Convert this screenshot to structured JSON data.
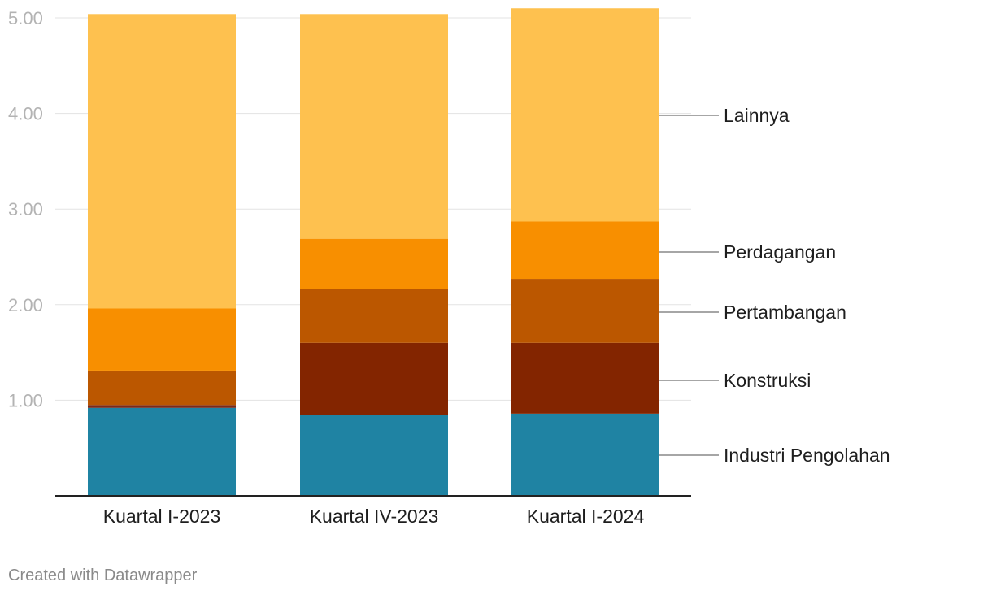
{
  "chart_data": {
    "type": "bar",
    "stacked": true,
    "categories": [
      "Kuartal I-2023",
      "Kuartal IV-2023",
      "Kuartal I-2024"
    ],
    "series": [
      {
        "name": "Industri Pengolahan",
        "color": "#1f83a3",
        "values": [
          0.92,
          0.85,
          0.86
        ]
      },
      {
        "name": "",
        "color": "#7a2a1a",
        "values": [
          0.03,
          0.0,
          0.0
        ]
      },
      {
        "name": "Konstruksi",
        "color": "#832500",
        "values": [
          0.0,
          0.75,
          0.74
        ]
      },
      {
        "name": "Pertambangan",
        "color": "#bb5700",
        "values": [
          0.36,
          0.56,
          0.67
        ]
      },
      {
        "name": "Perdagangan",
        "color": "#f88f00",
        "values": [
          0.65,
          0.53,
          0.6
        ]
      },
      {
        "name": "Lainnya",
        "color": "#fec14f",
        "values": [
          3.08,
          2.35,
          2.23
        ]
      }
    ],
    "ylim": [
      0,
      5.1
    ],
    "yticks": [
      "1.00",
      "2.00",
      "3.00",
      "4.00",
      "5.00"
    ],
    "xlabel": "",
    "ylabel": "",
    "grid": true,
    "legend": "direct labels on right"
  },
  "footer": {
    "credit": "Created with Datawrapper"
  }
}
